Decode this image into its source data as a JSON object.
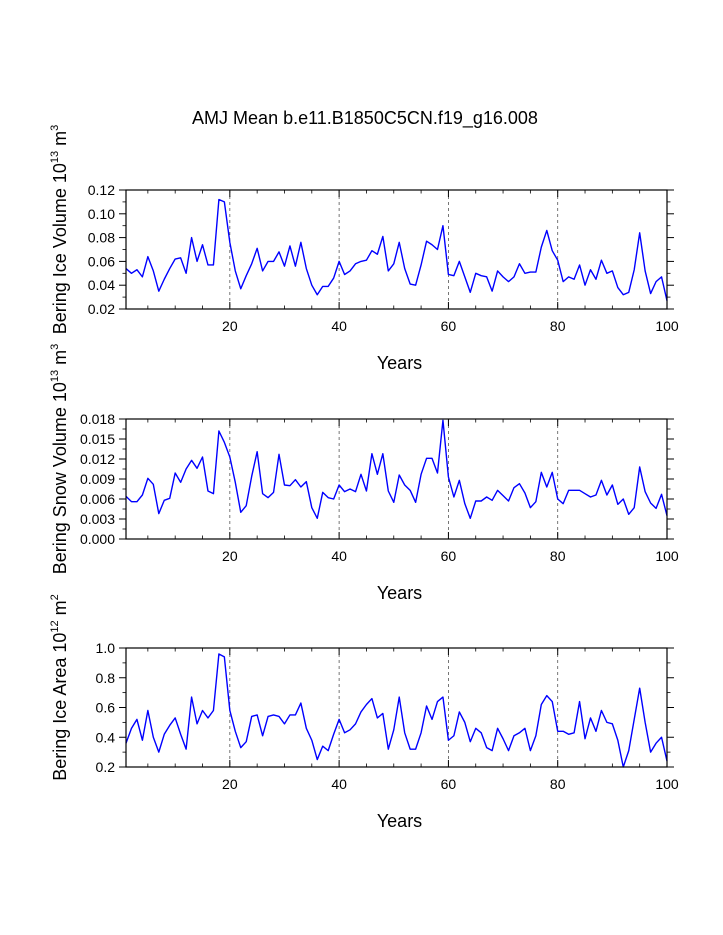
{
  "title": "AMJ Mean b.e11.B1850C5CN.f19_g16.008",
  "line_color": "#0000ff",
  "chart_data": [
    {
      "type": "line",
      "ylabel_main": "Bering Ice Volume 10",
      "ylabel_exp": "13",
      "ylabel_unit": " m",
      "ylabel_unit_exp": "3",
      "xlabel": "Years",
      "xlim": [
        1,
        100
      ],
      "ylim": [
        0.02,
        0.12
      ],
      "xticks": [
        20,
        40,
        60,
        80,
        100
      ],
      "yticks": [
        "0.02",
        "0.04",
        "0.06",
        "0.08",
        "0.10",
        "0.12"
      ],
      "grid_x": [
        20,
        40,
        60,
        80
      ],
      "series": [
        {
          "name": "Bering Ice Volume",
          "values": [
            0.054,
            0.05,
            0.053,
            0.047,
            0.064,
            0.052,
            0.035,
            0.045,
            0.054,
            0.062,
            0.063,
            0.05,
            0.08,
            0.06,
            0.074,
            0.057,
            0.057,
            0.112,
            0.11,
            0.076,
            0.052,
            0.037,
            0.048,
            0.058,
            0.071,
            0.052,
            0.06,
            0.06,
            0.068,
            0.056,
            0.073,
            0.056,
            0.076,
            0.054,
            0.04,
            0.032,
            0.039,
            0.039,
            0.046,
            0.06,
            0.049,
            0.052,
            0.058,
            0.06,
            0.061,
            0.069,
            0.066,
            0.081,
            0.052,
            0.058,
            0.076,
            0.054,
            0.041,
            0.04,
            0.057,
            0.077,
            0.074,
            0.07,
            0.09,
            0.049,
            0.048,
            0.06,
            0.047,
            0.034,
            0.05,
            0.048,
            0.047,
            0.035,
            0.052,
            0.047,
            0.043,
            0.047,
            0.058,
            0.05,
            0.051,
            0.051,
            0.072,
            0.086,
            0.069,
            0.061,
            0.043,
            0.047,
            0.045,
            0.057,
            0.04,
            0.053,
            0.045,
            0.061,
            0.05,
            0.052,
            0.038,
            0.032,
            0.034,
            0.053,
            0.084,
            0.052,
            0.033,
            0.043,
            0.047,
            0.027
          ]
        }
      ]
    },
    {
      "type": "line",
      "ylabel_main": "Bering Snow Volume 10",
      "ylabel_exp": "13",
      "ylabel_unit": " m",
      "ylabel_unit_exp": "3",
      "xlabel": "Years",
      "xlim": [
        1,
        100
      ],
      "ylim": [
        0.0,
        0.018
      ],
      "xticks": [
        20,
        40,
        60,
        80,
        100
      ],
      "yticks": [
        "0.000",
        "0.003",
        "0.006",
        "0.009",
        "0.012",
        "0.015",
        "0.018"
      ],
      "grid_x": [
        20,
        40,
        60,
        80
      ],
      "series": [
        {
          "name": "Bering Snow Volume",
          "values": [
            0.0064,
            0.0056,
            0.0056,
            0.0066,
            0.0091,
            0.0082,
            0.0038,
            0.0058,
            0.0061,
            0.0099,
            0.0085,
            0.0105,
            0.0118,
            0.0106,
            0.0123,
            0.0072,
            0.0068,
            0.0162,
            0.0145,
            0.0123,
            0.0085,
            0.004,
            0.005,
            0.0094,
            0.0131,
            0.0068,
            0.0062,
            0.007,
            0.0127,
            0.0081,
            0.008,
            0.0089,
            0.0078,
            0.0086,
            0.0047,
            0.0031,
            0.007,
            0.0062,
            0.006,
            0.0081,
            0.0071,
            0.0075,
            0.0071,
            0.0097,
            0.0072,
            0.0128,
            0.0097,
            0.0128,
            0.0072,
            0.0055,
            0.0096,
            0.0081,
            0.0073,
            0.0055,
            0.0097,
            0.0121,
            0.0121,
            0.0099,
            0.0178,
            0.0093,
            0.0063,
            0.0088,
            0.0053,
            0.0031,
            0.0057,
            0.0057,
            0.0063,
            0.0058,
            0.0073,
            0.0065,
            0.0057,
            0.0077,
            0.0083,
            0.0069,
            0.0047,
            0.0056,
            0.01,
            0.0078,
            0.01,
            0.006,
            0.0053,
            0.0073,
            0.0073,
            0.0073,
            0.0068,
            0.0063,
            0.0066,
            0.0088,
            0.0066,
            0.0081,
            0.0052,
            0.006,
            0.0037,
            0.0047,
            0.0108,
            0.0071,
            0.0054,
            0.0046,
            0.0067,
            0.0035
          ]
        }
      ]
    },
    {
      "type": "line",
      "ylabel_main": "Bering Ice Area 10",
      "ylabel_exp": "12",
      "ylabel_unit": " m",
      "ylabel_unit_exp": "2",
      "xlabel": "Years",
      "xlim": [
        1,
        100
      ],
      "ylim": [
        0.2,
        1.0
      ],
      "xticks": [
        20,
        40,
        60,
        80,
        100
      ],
      "yticks": [
        "0.2",
        "0.4",
        "0.6",
        "0.8",
        "1.0"
      ],
      "grid_x": [
        20,
        40,
        60,
        80
      ],
      "series": [
        {
          "name": "Bering Ice Area",
          "values": [
            0.36,
            0.46,
            0.52,
            0.38,
            0.58,
            0.4,
            0.3,
            0.42,
            0.48,
            0.53,
            0.42,
            0.32,
            0.67,
            0.49,
            0.58,
            0.53,
            0.58,
            0.96,
            0.94,
            0.58,
            0.44,
            0.33,
            0.37,
            0.54,
            0.55,
            0.41,
            0.54,
            0.55,
            0.54,
            0.49,
            0.55,
            0.55,
            0.63,
            0.46,
            0.38,
            0.25,
            0.34,
            0.31,
            0.42,
            0.52,
            0.43,
            0.45,
            0.49,
            0.57,
            0.62,
            0.66,
            0.53,
            0.56,
            0.32,
            0.45,
            0.67,
            0.43,
            0.32,
            0.32,
            0.43,
            0.61,
            0.52,
            0.64,
            0.67,
            0.38,
            0.41,
            0.57,
            0.5,
            0.37,
            0.46,
            0.43,
            0.33,
            0.31,
            0.46,
            0.39,
            0.31,
            0.41,
            0.43,
            0.46,
            0.31,
            0.41,
            0.62,
            0.68,
            0.64,
            0.44,
            0.44,
            0.42,
            0.43,
            0.64,
            0.39,
            0.53,
            0.44,
            0.58,
            0.5,
            0.49,
            0.38,
            0.2,
            0.31,
            0.52,
            0.73,
            0.5,
            0.3,
            0.36,
            0.4,
            0.24
          ]
        }
      ]
    }
  ]
}
